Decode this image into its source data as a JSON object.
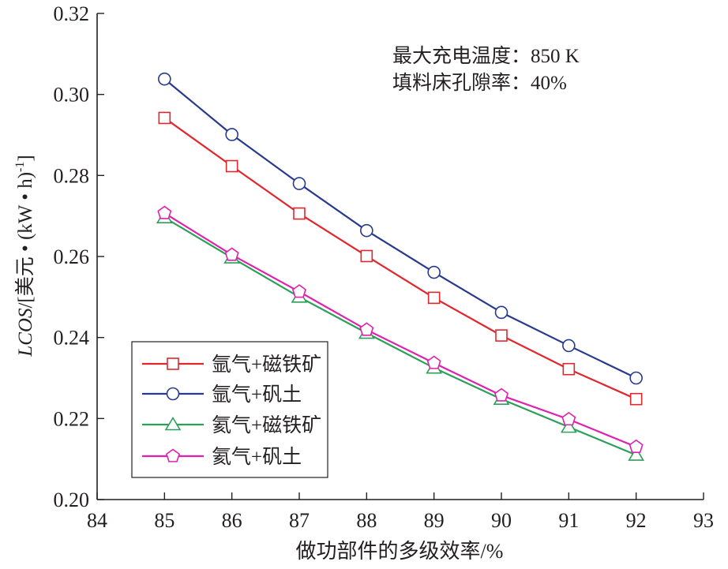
{
  "chart_data": {
    "type": "line",
    "xlabel": "做功部件的多级效率/%",
    "ylabel_italic": "LCOS",
    "ylabel_rest": "/[美元 • (kW • h)",
    "ylabel_sup": "-1",
    "ylabel_close": "]",
    "xlim": [
      84,
      93
    ],
    "ylim": [
      0.2,
      0.32
    ],
    "xticks": [
      84,
      85,
      86,
      87,
      88,
      89,
      90,
      91,
      92,
      93
    ],
    "yticks": [
      0.2,
      0.22,
      0.24,
      0.26,
      0.28,
      0.3,
      0.32
    ],
    "ytick_labels": [
      "0.20",
      "0.22",
      "0.24",
      "0.26",
      "0.28",
      "0.30",
      "0.32"
    ],
    "grid": false,
    "legend_position": "bottom-left",
    "annotations": [
      "最大充电温度：850 K",
      "填料床孔隙率：40%"
    ],
    "x": [
      85,
      86,
      87,
      88,
      89,
      90,
      91,
      92
    ],
    "series": [
      {
        "name": "氩气+磁铁矿",
        "marker": "square",
        "color": "#e0272e",
        "values": [
          0.2942,
          0.2823,
          0.2706,
          0.2601,
          0.2498,
          0.2405,
          0.2322,
          0.2248
        ]
      },
      {
        "name": "氩气+矾土",
        "marker": "circle",
        "color": "#283a8e",
        "values": [
          0.3038,
          0.2901,
          0.278,
          0.2664,
          0.2561,
          0.2462,
          0.238,
          0.23
        ]
      },
      {
        "name": "氦气+磁铁矿",
        "marker": "triangle",
        "color": "#2ca05a",
        "values": [
          0.2696,
          0.2597,
          0.25,
          0.2411,
          0.2325,
          0.2248,
          0.2179,
          0.211
        ]
      },
      {
        "name": "氦气+矾土",
        "marker": "pentagon",
        "color": "#e020b0",
        "values": [
          0.2707,
          0.2604,
          0.2513,
          0.2419,
          0.2337,
          0.2257,
          0.2198,
          0.213
        ]
      }
    ]
  }
}
